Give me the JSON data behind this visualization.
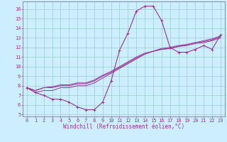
{
  "xlabel": "Windchill (Refroidissement éolien,°C)",
  "bg_color": "#cceeff",
  "grid_color": "#99cccc",
  "line_color": "#993399",
  "xlim": [
    -0.5,
    23.5
  ],
  "ylim": [
    4.8,
    16.8
  ],
  "xticks": [
    0,
    1,
    2,
    3,
    4,
    5,
    6,
    7,
    8,
    9,
    10,
    11,
    12,
    13,
    14,
    15,
    16,
    17,
    18,
    19,
    20,
    21,
    22,
    23
  ],
  "yticks": [
    5,
    6,
    7,
    8,
    9,
    10,
    11,
    12,
    13,
    14,
    15,
    16
  ],
  "series": [
    [
      7.8,
      7.3,
      7.0,
      6.6,
      6.6,
      6.3,
      5.8,
      5.5,
      5.5,
      6.3,
      8.5,
      11.7,
      13.5,
      15.8,
      16.3,
      16.3,
      14.8,
      12.0,
      11.5,
      11.5,
      11.8,
      12.2,
      11.8,
      13.3
    ],
    [
      7.8,
      7.3,
      7.5,
      7.5,
      7.8,
      7.8,
      8.0,
      8.0,
      8.3,
      8.8,
      9.3,
      9.8,
      10.3,
      10.8,
      11.3,
      11.6,
      11.8,
      11.9,
      12.1,
      12.2,
      12.4,
      12.5,
      12.7,
      13.0
    ],
    [
      7.8,
      7.5,
      7.8,
      7.8,
      8.0,
      8.0,
      8.2,
      8.2,
      8.5,
      9.0,
      9.4,
      9.9,
      10.4,
      10.9,
      11.3,
      11.6,
      11.8,
      11.9,
      12.1,
      12.3,
      12.5,
      12.6,
      12.8,
      13.1
    ],
    [
      7.8,
      7.5,
      7.8,
      7.9,
      8.1,
      8.1,
      8.3,
      8.3,
      8.6,
      9.1,
      9.5,
      10.0,
      10.5,
      11.0,
      11.4,
      11.6,
      11.9,
      12.0,
      12.2,
      12.3,
      12.5,
      12.7,
      12.9,
      13.2
    ]
  ],
  "label_fontsize": 5.0,
  "xlabel_fontsize": 5.5
}
